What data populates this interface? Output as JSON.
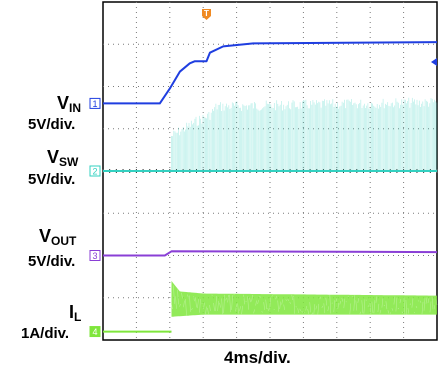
{
  "chart_data": {
    "type": "line",
    "x": {
      "unit": "div",
      "range": [
        0,
        10
      ],
      "scale_label": "4ms/div."
    },
    "y": {
      "unit": "div",
      "range": [
        0,
        8
      ]
    },
    "grid": true,
    "channels": [
      {
        "marker": "1",
        "name": "V",
        "sub": "IN",
        "scale": "5V/div.",
        "color": "#1f3ee0",
        "points": [
          [
            0,
            5.6
          ],
          [
            1.7,
            5.6
          ],
          [
            2.0,
            5.95
          ],
          [
            2.3,
            6.35
          ],
          [
            2.6,
            6.55
          ],
          [
            2.75,
            6.6
          ],
          [
            2.9,
            6.6
          ],
          [
            3.1,
            6.6
          ],
          [
            3.2,
            6.8
          ],
          [
            3.6,
            6.95
          ],
          [
            4.5,
            7.02
          ],
          [
            10,
            7.05
          ]
        ]
      },
      {
        "marker": "2",
        "name": "V",
        "sub": "SW",
        "scale": "5V/div.",
        "color": "#33d0c0",
        "points": [
          [
            0,
            4.0
          ],
          [
            2.05,
            4.0
          ],
          [
            10,
            4.0
          ]
        ],
        "switching": {
          "start": 2.05,
          "top": [
            [
              2.05,
              4.95
            ],
            [
              2.8,
              5.3
            ],
            [
              3.2,
              5.45
            ],
            [
              3.4,
              5.65
            ],
            [
              10,
              5.75
            ]
          ]
        }
      },
      {
        "marker": "3",
        "name": "V",
        "sub": "OUT",
        "scale": "5V/div.",
        "color": "#8a3fd6",
        "points": [
          [
            0,
            2.0
          ],
          [
            1.85,
            2.0
          ],
          [
            2.05,
            2.1
          ],
          [
            10,
            2.08
          ]
        ]
      },
      {
        "marker": "4",
        "name": "I",
        "sub": "L",
        "scale": "1A/div.",
        "color": "#7fe63c",
        "points": [
          [
            0,
            0.2
          ],
          [
            2.05,
            0.2
          ]
        ],
        "ripple": {
          "start": 2.05,
          "center": 0.95,
          "top": [
            [
              2.05,
              1.4
            ],
            [
              2.3,
              1.15
            ],
            [
              3,
              1.1
            ],
            [
              10,
              1.05
            ]
          ],
          "bottom": [
            [
              2.05,
              0.55
            ],
            [
              3,
              0.6
            ],
            [
              10,
              0.6
            ]
          ]
        }
      }
    ],
    "trigger_marker": "T"
  }
}
